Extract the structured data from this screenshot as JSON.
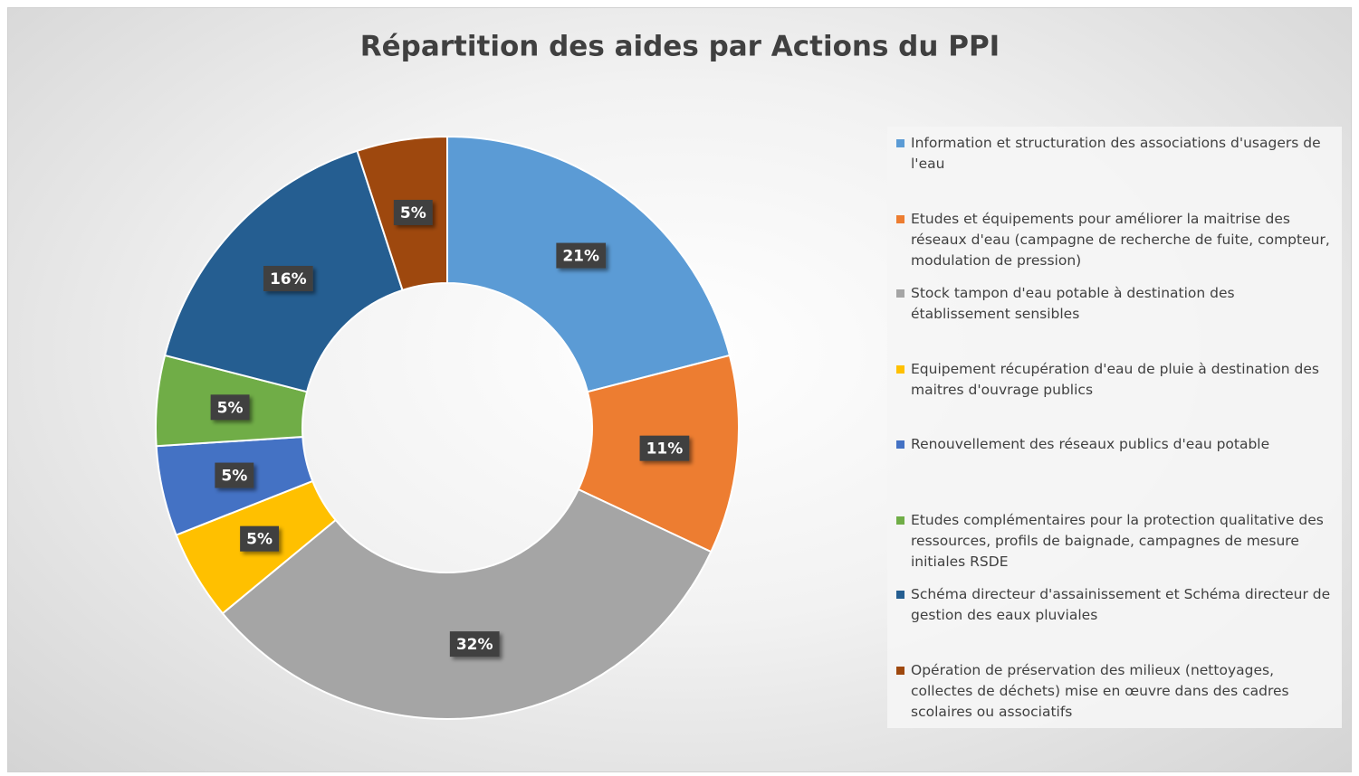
{
  "chart_data": {
    "type": "pie",
    "title": "Répartition des aides par Actions du PPI",
    "categories": [
      "Information et structuration des associations d'usagers de l'eau",
      "Etudes et équipements pour  améliorer la maitrise des réseaux d'eau (campagne de recherche de fuite, compteur, modulation de pression)",
      "Stock tampon d'eau potable à destination des établissement sensibles",
      "Equipement récupération d'eau de pluie à destination des maitres d'ouvrage publics",
      "Renouvellement des réseaux publics d'eau potable",
      "Etudes complémentaires pour la protection qualitative des ressources, profils de baignade, campagnes de mesure initiales RSDE",
      "Schéma directeur d'assainissement et Schéma directeur de gestion des eaux pluviales",
      "Opération de préservation des milieux (nettoyages, collectes de déchets) mise en œuvre dans des cadres scolaires ou associatifs"
    ],
    "values": [
      21,
      11,
      32,
      5,
      5,
      5,
      16,
      5
    ],
    "value_labels": [
      "21%",
      "11%",
      "32%",
      "5%",
      "5%",
      "5%",
      "16%",
      "5%"
    ],
    "colors": [
      "#5b9bd5",
      "#ed7d31",
      "#a5a5a5",
      "#ffc000",
      "#4472c4",
      "#70ad47",
      "#255e91",
      "#9e480e"
    ],
    "donut": true
  }
}
